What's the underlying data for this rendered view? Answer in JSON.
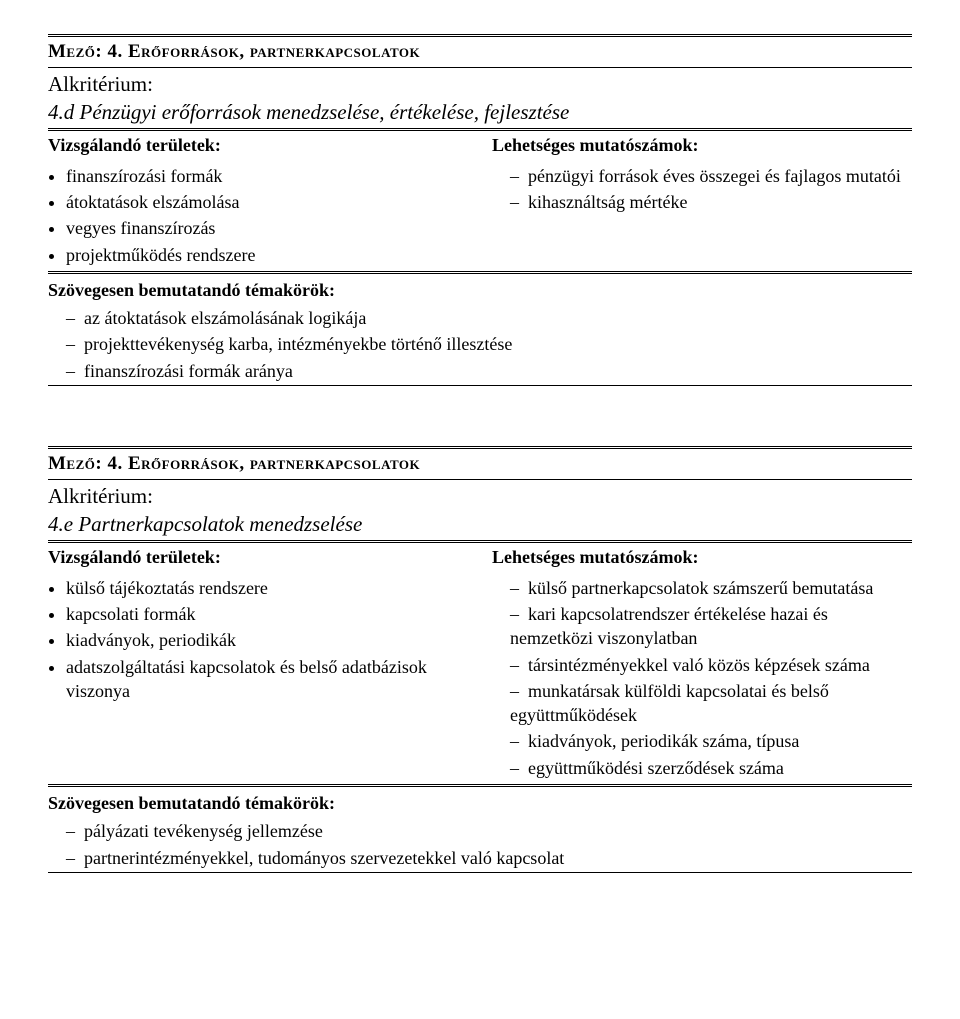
{
  "block1": {
    "field_label": "Mező: ",
    "field_value": "4. Erőforrások, partnerkapcsolatok",
    "alk_label": "Alkritérium:",
    "alk_value": "4.d Pénzügyi erőforrások menedzselése, értékelése, fejlesztése",
    "left_header": "Vizsgálandó területek:",
    "left_items": [
      "finanszírozási formák",
      "átoktatások elszámolása",
      "vegyes finanszírozás",
      "projektműködés rendszere"
    ],
    "right_header": "Lehetséges mutatószámok:",
    "right_items": [
      "pénzügyi források éves összegei és fajlagos mutatói",
      "kihasználtság mértéke"
    ],
    "sub_header": "Szövegesen bemutatandó témakörök:",
    "sub_items": [
      "az átoktatások elszámolásának logikája",
      "projekttevékenység karba, intézményekbe történő illesztése",
      "finanszírozási formák aránya"
    ]
  },
  "block2": {
    "field_label": "Mező: ",
    "field_value": "4. Erőforrások, partnerkapcsolatok",
    "alk_label": "Alkritérium:",
    "alk_value": "4.e Partnerkapcsolatok menedzselése",
    "left_header": "Vizsgálandó területek:",
    "left_items": [
      "külső tájékoztatás rendszere",
      "kapcsolati formák",
      "kiadványok, periodikák",
      "adatszolgáltatási kapcsolatok és belső adatbázisok viszonya"
    ],
    "right_header": "Lehetséges mutatószámok:",
    "right_items": [
      "külső partnerkapcsolatok számszerű bemutatása",
      "kari kapcsolatrendszer értékelése hazai és nemzetközi viszonylatban",
      "társintézményekkel való közös képzések száma",
      "munkatársak külföldi kapcsolatai és belső együttműködések",
      "kiadványok, periodikák száma, típusa",
      "együttműködési szerződések száma"
    ],
    "sub_header": "Szövegesen bemutatandó témakörök:",
    "sub_items": [
      "pályázati tevékenység jellemzése",
      "partnerintézményekkel, tudományos szervezetekkel való kapcsolat"
    ]
  }
}
